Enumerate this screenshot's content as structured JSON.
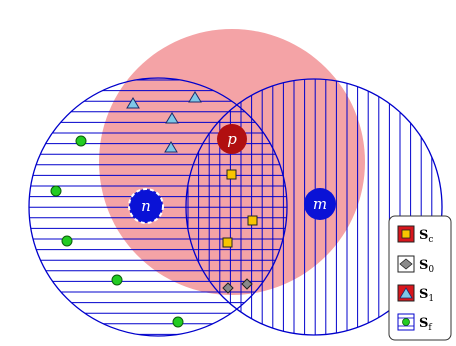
{
  "nodes": {
    "p": "p",
    "n": "n",
    "m": "m"
  },
  "legend": {
    "items": [
      {
        "symbol": "S",
        "subscript": "c",
        "marker": "yellow-square"
      },
      {
        "symbol": "S",
        "subscript": "0",
        "marker": "gray-diamond"
      },
      {
        "symbol": "S",
        "subscript": "1",
        "marker": "blue-triangle"
      },
      {
        "symbol": "S",
        "subscript": "f",
        "marker": "green-circle"
      }
    ]
  },
  "colors": {
    "pink_region": "#f4a3a6",
    "hatch_blue": "#0000cc",
    "node_p": "#b10f10",
    "node_blue": "#0a12d6",
    "square_fill": "#f8c500",
    "diamond_fill": "#8a8a8a",
    "triangle_fill": "#7ec8e8",
    "circle_fill": "#22cc22"
  }
}
